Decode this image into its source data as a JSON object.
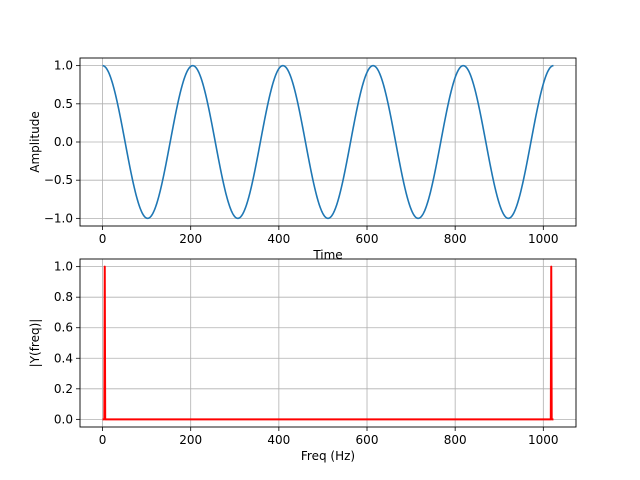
{
  "chart_data": [
    {
      "type": "line",
      "xlabel": "Time",
      "ylabel": "Amplitude",
      "xlim": [
        -51.15,
        1074.15
      ],
      "ylim": [
        -1.1,
        1.1
      ],
      "xticks": [
        0,
        200,
        400,
        600,
        800,
        1000
      ],
      "yticks": [
        -1.0,
        -0.5,
        0.0,
        0.5,
        1.0
      ],
      "ytick_labels": [
        "−1.0",
        "−0.5",
        "0.0",
        "0.5",
        "1.0"
      ],
      "grid": true,
      "series": [
        {
          "color": "#1f77b4",
          "x_start": 0,
          "x_end": 1023,
          "period": 204.6,
          "amplitude": 1.0,
          "function": "cosine"
        }
      ]
    },
    {
      "type": "line",
      "xlabel": "Freq (Hz)",
      "ylabel": "|Y(freq)|",
      "xlim": [
        -51.15,
        1074.15
      ],
      "ylim": [
        -0.05,
        1.05
      ],
      "xticks": [
        0,
        200,
        400,
        600,
        800,
        1000
      ],
      "yticks": [
        0.0,
        0.2,
        0.4,
        0.6,
        0.8,
        1.0
      ],
      "ytick_labels": [
        "0.0",
        "0.2",
        "0.4",
        "0.6",
        "0.8",
        "1.0"
      ],
      "grid": true,
      "series": [
        {
          "color": "#ff0000",
          "points": [
            [
              0,
              0
            ],
            [
              4,
              0
            ],
            [
              5,
              1.0
            ],
            [
              6,
              0
            ],
            [
              1017,
              0
            ],
            [
              1018,
              1.0
            ],
            [
              1019,
              0
            ],
            [
              1023,
              0
            ]
          ]
        }
      ]
    }
  ]
}
